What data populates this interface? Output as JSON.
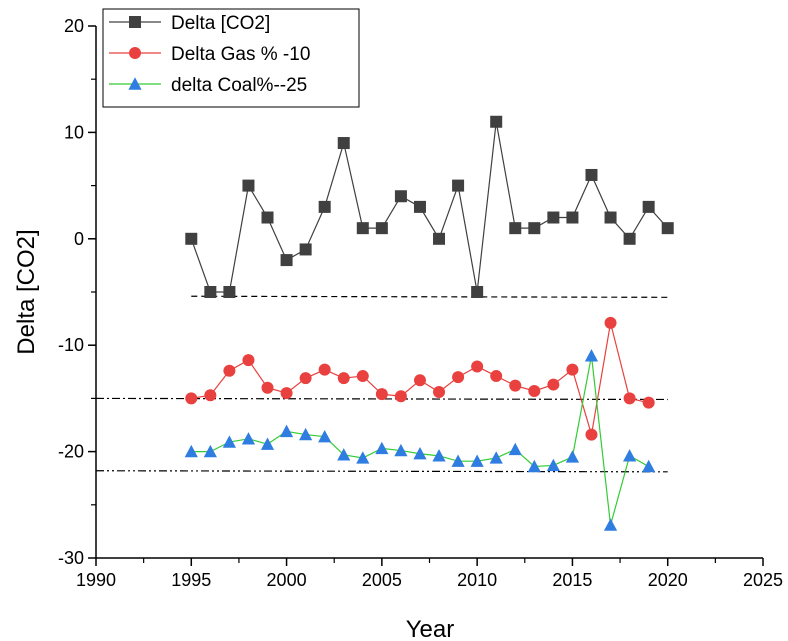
{
  "chart_data": {
    "type": "line",
    "title": "",
    "xlabel": "Year",
    "ylabel": "Delta [CO2]",
    "xlim": [
      1990,
      2025
    ],
    "ylim": [
      -30,
      20
    ],
    "x_ticks": [
      1990,
      1995,
      2000,
      2005,
      2010,
      2015,
      2020,
      2025
    ],
    "y_ticks": [
      -30,
      -20,
      -10,
      0,
      10,
      20
    ],
    "x_tick_labels": [
      "1990",
      "1995",
      "2000",
      "2005",
      "2010",
      "2015",
      "2020",
      "2025"
    ],
    "y_tick_labels": [
      "-30",
      "-20",
      "-10",
      "0",
      "10",
      "20"
    ],
    "legend_position": "top-left",
    "series": [
      {
        "name": "Delta [CO2]",
        "color": "#404040",
        "marker": "square",
        "x": [
          1995,
          1996,
          1997,
          1998,
          1999,
          2000,
          2001,
          2002,
          2003,
          2004,
          2005,
          2006,
          2007,
          2008,
          2009,
          2010,
          2011,
          2012,
          2013,
          2014,
          2015,
          2016,
          2017,
          2018,
          2019,
          2020
        ],
        "values": [
          0,
          -5,
          -5,
          5,
          2,
          -2,
          -1,
          3,
          9,
          1,
          1,
          4,
          3,
          0,
          5,
          -5,
          11,
          1,
          1,
          2,
          2,
          6,
          2,
          0,
          3,
          1
        ]
      },
      {
        "name": "Delta Gas % -10",
        "color": "#e8413f",
        "marker": "circle",
        "x": [
          1995,
          1996,
          1997,
          1998,
          1999,
          2000,
          2001,
          2002,
          2003,
          2004,
          2005,
          2006,
          2007,
          2008,
          2009,
          2010,
          2011,
          2012,
          2013,
          2014,
          2015,
          2016,
          2017,
          2018,
          2019
        ],
        "values": [
          -15,
          -14.7,
          -12.4,
          -11.4,
          -14,
          -14.5,
          -13.1,
          -12.3,
          -13.1,
          -12.9,
          -14.6,
          -14.8,
          -13.3,
          -14.4,
          -13,
          -12,
          -12.9,
          -13.8,
          -14.3,
          -13.7,
          -12.3,
          -18.4,
          -7.9,
          -15,
          -15.4
        ]
      },
      {
        "name": "delta Coal%--25",
        "color": "#2f7de1",
        "line_color": "#33cc33",
        "marker": "triangle",
        "x": [
          1995,
          1996,
          1997,
          1998,
          1999,
          2000,
          2001,
          2002,
          2003,
          2004,
          2005,
          2006,
          2007,
          2008,
          2009,
          2010,
          2011,
          2012,
          2013,
          2014,
          2015,
          2016,
          2017,
          2018,
          2019
        ],
        "values": [
          -20,
          -20,
          -19.1,
          -18.8,
          -19.3,
          -18.1,
          -18.4,
          -18.6,
          -20.3,
          -20.6,
          -19.7,
          -19.9,
          -20.2,
          -20.4,
          -20.9,
          -20.9,
          -20.6,
          -19.8,
          -21.4,
          -21.3,
          -20.5,
          -11,
          -26.9,
          -20.4,
          -21.4
        ]
      }
    ],
    "reference_lines": [
      {
        "style": "dashed",
        "x": [
          1995,
          2020
        ],
        "values": [
          -5.4,
          -5.5
        ]
      },
      {
        "style": "dash-dot",
        "x": [
          1990,
          2020
        ],
        "values": [
          -15,
          -15.1
        ]
      },
      {
        "style": "dash-dot-dot",
        "x": [
          1990,
          2020
        ],
        "values": [
          -21.8,
          -21.9
        ]
      }
    ]
  }
}
